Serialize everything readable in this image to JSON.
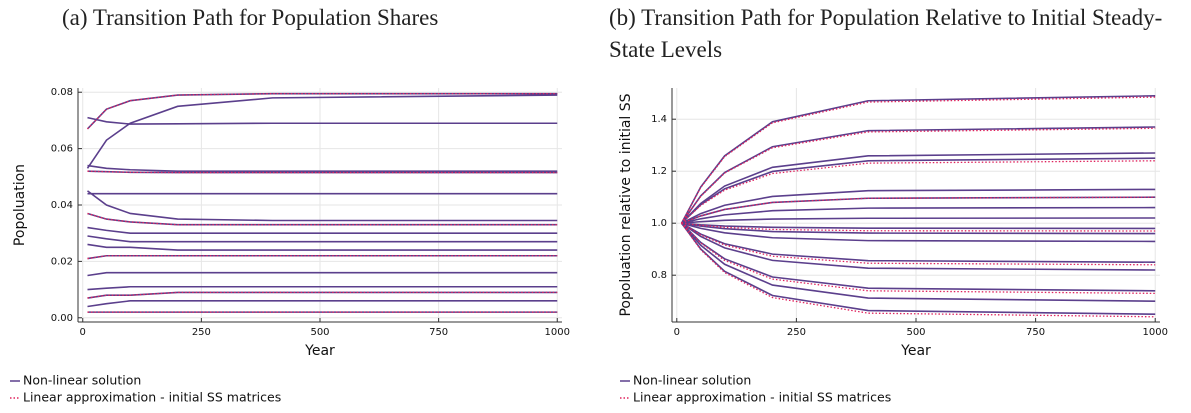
{
  "chart_data": [
    {
      "type": "line",
      "title": "(a) Transition Path for Population Shares",
      "xlabel": "Year",
      "ylabel": "Popoluation",
      "x": [
        10,
        50,
        100,
        200,
        400,
        1000
      ],
      "xlim": [
        -10,
        1010
      ],
      "xticks": [
        0,
        250,
        500,
        750,
        1000
      ],
      "ylim": [
        -0.0015,
        0.0815
      ],
      "yticks": [
        {
          "value": 0,
          "label": "0.00"
        },
        {
          "value": 0.02,
          "label": "0.02"
        },
        {
          "value": 0.04,
          "label": "0.04"
        },
        {
          "value": 0.06,
          "label": "0.06"
        },
        {
          "value": 0.08,
          "label": "0.08"
        }
      ],
      "grid": true,
      "series": [
        {
          "name": "Non-linear solution",
          "color": "#5b3f8c",
          "style": "solid",
          "values": [
            [
              0.071,
              0.0695,
              0.0687,
              0.0688,
              0.069,
              0.069
            ],
            [
              0.067,
              0.074,
              0.077,
              0.079,
              0.0795,
              0.0795
            ],
            [
              0.053,
              0.063,
              0.069,
              0.075,
              0.078,
              0.079
            ],
            [
              0.054,
              0.053,
              0.0525,
              0.052,
              0.052,
              0.052
            ],
            [
              0.052,
              0.0518,
              0.0516,
              0.0515,
              0.0515,
              0.0515
            ],
            [
              0.045,
              0.04,
              0.037,
              0.035,
              0.0345,
              0.0345
            ],
            [
              0.044,
              0.044,
              0.044,
              0.044,
              0.044,
              0.044
            ],
            [
              0.037,
              0.035,
              0.034,
              0.033,
              0.033,
              0.033
            ],
            [
              0.032,
              0.031,
              0.03,
              0.03,
              0.03,
              0.03
            ],
            [
              0.029,
              0.028,
              0.027,
              0.027,
              0.027,
              0.027
            ],
            [
              0.026,
              0.025,
              0.025,
              0.024,
              0.024,
              0.024
            ],
            [
              0.021,
              0.022,
              0.022,
              0.022,
              0.022,
              0.022
            ],
            [
              0.015,
              0.016,
              0.016,
              0.016,
              0.016,
              0.016
            ],
            [
              0.01,
              0.0105,
              0.011,
              0.011,
              0.011,
              0.011
            ],
            [
              0.007,
              0.008,
              0.008,
              0.009,
              0.009,
              0.009
            ],
            [
              0.004,
              0.005,
              0.006,
              0.006,
              0.006,
              0.006
            ],
            [
              0.002,
              0.002,
              0.002,
              0.002,
              0.002,
              0.002
            ]
          ]
        },
        {
          "name": "Linear approximation - initial SS matrices",
          "color": "#e0245e",
          "style": "dotted",
          "values": [
            [
              0.067,
              0.074,
              0.077,
              0.079,
              0.0795,
              0.0795
            ],
            [
              0.052,
              0.0518,
              0.0516,
              0.0515,
              0.0515,
              0.0515
            ],
            [
              0.037,
              0.035,
              0.034,
              0.033,
              0.033,
              0.033
            ],
            [
              0.021,
              0.022,
              0.022,
              0.022,
              0.022,
              0.022
            ],
            [
              0.007,
              0.008,
              0.008,
              0.009,
              0.009,
              0.009
            ],
            [
              0.002,
              0.002,
              0.002,
              0.002,
              0.002,
              0.002
            ]
          ]
        }
      ]
    },
    {
      "type": "line",
      "title": "(b) Transition Path for Population Relative to Initial Steady-State Levels",
      "xlabel": "Year",
      "ylabel": "Popoluation relative to initial SS",
      "x": [
        10,
        50,
        100,
        200,
        400,
        1000
      ],
      "xlim": [
        -10,
        1010
      ],
      "xticks": [
        0,
        250,
        500,
        750,
        1000
      ],
      "ylim": [
        0.62,
        1.52
      ],
      "yticks": [
        0.8,
        {
          "value": 1,
          "label": "1.0"
        },
        1.2,
        1.4
      ],
      "grid": true,
      "series": [
        {
          "name": "Non-linear solution",
          "color": "#5b3f8c",
          "style": "solid",
          "values": [
            [
              1,
              1.139,
              1.259,
              1.39,
              1.471,
              1.49
            ],
            [
              1,
              1.105,
              1.195,
              1.294,
              1.356,
              1.37
            ],
            [
              1,
              1.076,
              1.143,
              1.215,
              1.259,
              1.27
            ],
            [
              1,
              1.071,
              1.132,
              1.199,
              1.24,
              1.25
            ],
            [
              1,
              1.037,
              1.069,
              1.103,
              1.125,
              1.13
            ],
            [
              1,
              1.028,
              1.053,
              1.08,
              1.096,
              1.1
            ],
            [
              1,
              1.017,
              1.032,
              1.048,
              1.058,
              1.06
            ],
            [
              1,
              1.006,
              1.011,
              1.016,
              1.019,
              1.02
            ],
            [
              1,
              0.994,
              0.989,
              0.984,
              0.981,
              0.98
            ],
            [
              1,
              0.989,
              0.979,
              0.968,
              0.962,
              0.96
            ],
            [
              1,
              0.98,
              0.963,
              0.944,
              0.933,
              0.93
            ],
            [
              1,
              0.958,
              0.921,
              0.881,
              0.856,
              0.85
            ],
            [
              1,
              0.949,
              0.905,
              0.857,
              0.827,
              0.82
            ],
            [
              1,
              0.926,
              0.863,
              0.793,
              0.75,
              0.74
            ],
            [
              1,
              0.915,
              0.842,
              0.762,
              0.712,
              0.7
            ],
            [
              1,
              0.901,
              0.815,
              0.722,
              0.664,
              0.65
            ]
          ]
        },
        {
          "name": "Linear approximation - initial SS matrices",
          "color": "#e0245e",
          "style": "dotted",
          "values": [
            [
              1,
              1.137,
              1.256,
              1.386,
              1.466,
              1.485
            ],
            [
              1,
              1.103,
              1.193,
              1.29,
              1.351,
              1.365
            ],
            [
              1,
              1.068,
              1.127,
              1.191,
              1.231,
              1.24
            ],
            [
              1,
              1.028,
              1.053,
              1.08,
              1.096,
              1.1
            ],
            [
              1,
              0.992,
              0.984,
              0.976,
              0.971,
              0.97
            ],
            [
              1,
              0.955,
              0.916,
              0.873,
              0.846,
              0.84
            ],
            [
              1,
              0.924,
              0.857,
              0.785,
              0.74,
              0.73
            ],
            [
              1,
              0.898,
              0.81,
              0.714,
              0.654,
              0.64
            ]
          ]
        }
      ]
    }
  ]
}
